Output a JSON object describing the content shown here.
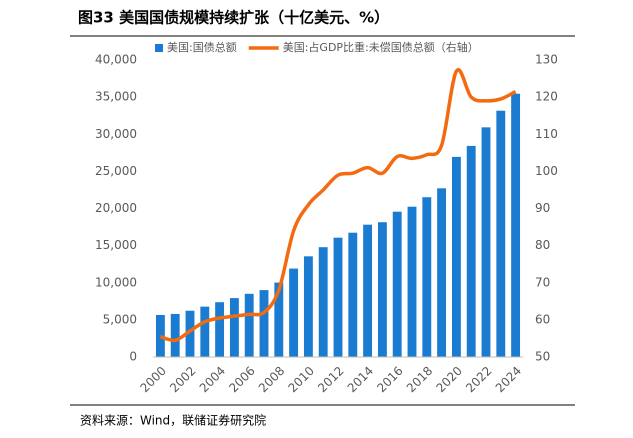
{
  "chart_data": {
    "type": "bar-line",
    "title": "图33 美国国债规模持续扩张（十亿美元、%）",
    "source": "资料来源：Wind，联储证券研究院",
    "categories": [
      "2000",
      null,
      "2002",
      null,
      "2004",
      null,
      "2006",
      null,
      "2008",
      null,
      "2010",
      null,
      "2012",
      null,
      "2014",
      null,
      "2016",
      null,
      "2018",
      null,
      "2020",
      null,
      "2022",
      null,
      "2024"
    ],
    "series": [
      {
        "name": "美国:国债总额",
        "type": "bar",
        "color": "#1a7bd0",
        "values": [
          5660,
          5800,
          6230,
          6780,
          7380,
          7930,
          8510,
          9010,
          10020,
          11910,
          13560,
          14790,
          16070,
          16740,
          17820,
          18150,
          19570,
          20240,
          21520,
          22720,
          26950,
          28430,
          30930,
          33170,
          35460
        ]
      },
      {
        "name": "美国:占GDP比重:未偿国债总额（右轴）",
        "type": "line",
        "axis": "y2",
        "color": "#f26b10",
        "values": [
          55.5,
          54.5,
          57,
          59.5,
          60.5,
          61,
          61.5,
          62,
          68,
          84,
          91,
          95,
          99,
          99.5,
          101,
          99.5,
          104,
          103.5,
          104.5,
          107,
          127,
          120,
          119,
          119.5,
          121.5
        ]
      }
    ],
    "ylim": [
      0,
      40000
    ],
    "yticks": [
      0,
      {
        "value": 5000,
        "label": "5,000"
      },
      {
        "value": 10000,
        "label": "10,000"
      },
      {
        "value": 15000,
        "label": "15,000"
      },
      {
        "value": 20000,
        "label": "20,000"
      },
      {
        "value": 25000,
        "label": "25,000"
      },
      {
        "value": 30000,
        "label": "30,000"
      },
      {
        "value": 35000,
        "label": "35,000"
      },
      {
        "value": 40000,
        "label": "40,000"
      }
    ],
    "y2lim": [
      50,
      130
    ],
    "y2ticks": [
      50,
      60,
      70,
      80,
      90,
      100,
      110,
      120,
      130
    ],
    "grid": false
  }
}
